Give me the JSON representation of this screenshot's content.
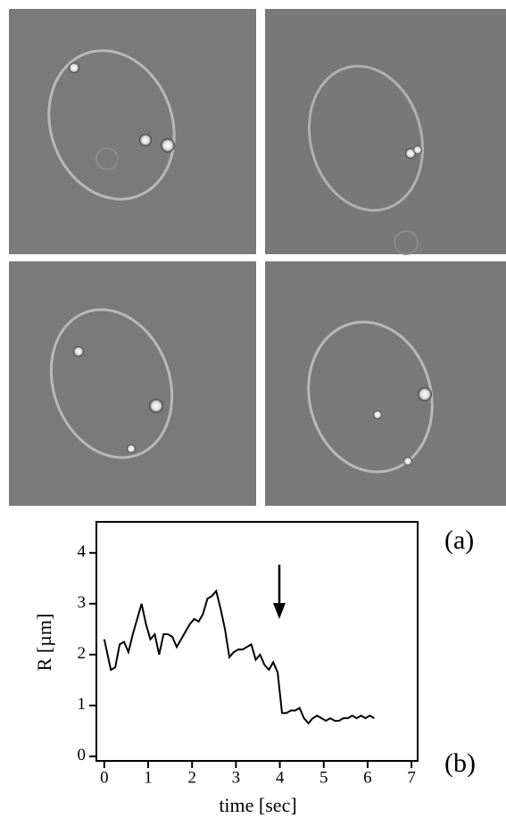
{
  "panels": [
    {
      "label": "(a)"
    },
    {
      "label": "(b)"
    }
  ],
  "chart_data": {
    "type": "line",
    "x_label": "time [sec]",
    "y_label": "R [µm]",
    "x": [
      0,
      0.1,
      0.15,
      0.25,
      0.35,
      0.45,
      0.55,
      0.65,
      0.75,
      0.85,
      0.95,
      1.05,
      1.15,
      1.25,
      1.35,
      1.45,
      1.55,
      1.65,
      1.75,
      1.85,
      1.95,
      2.05,
      2.15,
      2.25,
      2.35,
      2.45,
      2.55,
      2.65,
      2.75,
      2.85,
      2.95,
      3.05,
      3.15,
      3.25,
      3.35,
      3.45,
      3.55,
      3.65,
      3.75,
      3.85,
      3.95,
      4.05,
      4.15,
      4.25,
      4.35,
      4.45,
      4.55,
      4.65,
      4.75,
      4.85,
      4.95,
      5.05,
      5.15,
      5.25,
      5.35,
      5.45,
      5.55,
      5.65,
      5.75,
      5.85,
      5.95,
      6.05,
      6.15
    ],
    "values": [
      2.3,
      1.9,
      1.7,
      1.75,
      2.2,
      2.25,
      2.05,
      2.4,
      2.7,
      3.0,
      2.6,
      2.3,
      2.4,
      2.0,
      2.4,
      2.4,
      2.35,
      2.15,
      2.3,
      2.45,
      2.6,
      2.7,
      2.65,
      2.8,
      3.1,
      3.15,
      3.25,
      2.9,
      2.5,
      1.95,
      2.05,
      2.1,
      2.1,
      2.15,
      2.2,
      1.9,
      2.0,
      1.8,
      1.7,
      1.85,
      1.65,
      0.85,
      0.85,
      0.9,
      0.9,
      0.95,
      0.75,
      0.65,
      0.75,
      0.8,
      0.75,
      0.7,
      0.75,
      0.7,
      0.7,
      0.75,
      0.75,
      0.8,
      0.75,
      0.8,
      0.75,
      0.8,
      0.75
    ],
    "color": "#000000",
    "xlim": [
      -0.18,
      7.14
    ],
    "xticks": [
      0,
      1,
      2,
      3,
      4,
      5,
      6,
      7
    ],
    "ylim": [
      -0.09,
      4.61
    ],
    "yticks": [
      0,
      1,
      2,
      3,
      4
    ]
  }
}
